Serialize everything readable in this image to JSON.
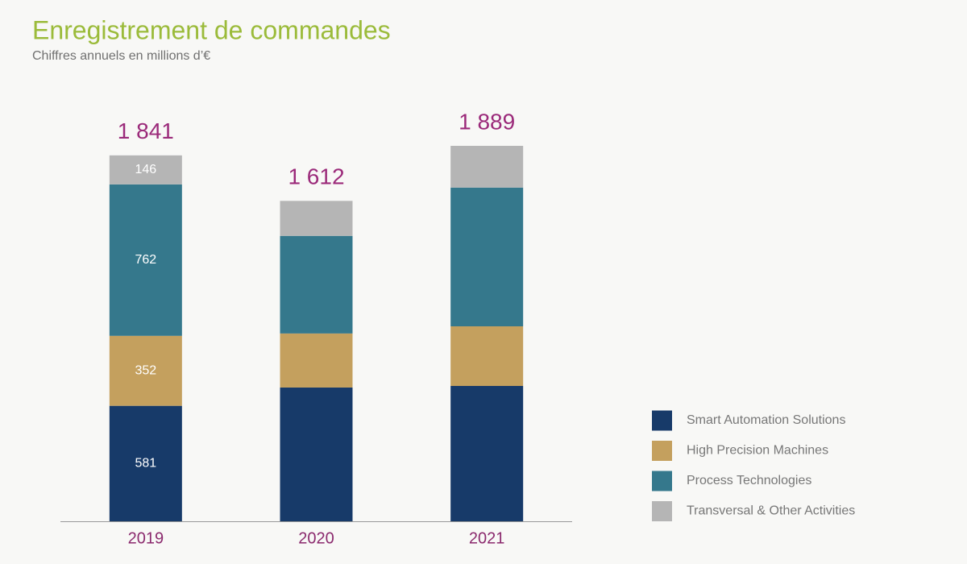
{
  "chart_data": {
    "type": "stacked_bar",
    "title": "Enregistrement de commandes",
    "subtitle": "Chiffres annuels en millions d’€",
    "categories": [
      "2019",
      "2020",
      "2021"
    ],
    "series": [
      {
        "name": "Smart Automation Solutions",
        "color": "#173a69",
        "values": [
          581,
          673,
          681
        ]
      },
      {
        "name": "High Precision Machines",
        "color": "#c4a05e",
        "values": [
          352,
          272,
          300
        ]
      },
      {
        "name": "Process Technologies",
        "color": "#35788c",
        "values": [
          762,
          491,
          698
        ]
      },
      {
        "name": "Transversal & Other Activities",
        "color": "#b5b5b5",
        "values": [
          146,
          176,
          210
        ]
      }
    ],
    "show_value_labels": [
      true,
      false,
      false
    ],
    "totals": [
      1841,
      1612,
      1889
    ],
    "total_labels": [
      "1 841",
      "1 612",
      "1 889"
    ],
    "legend": "right"
  }
}
